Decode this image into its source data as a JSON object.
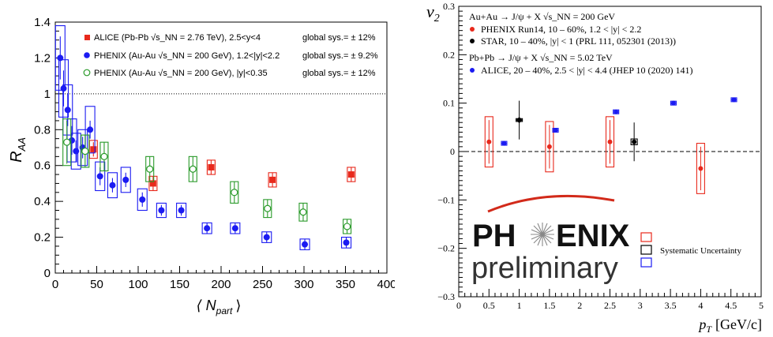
{
  "chart_data": [
    {
      "type": "scatter",
      "xlabel": "⟨ N",
      "xlabel_sub": "part",
      "xlabel_close": "⟩",
      "ylabel": "R",
      "ylabel_sub": "AA",
      "xlim": [
        0,
        400
      ],
      "ylim": [
        0,
        1.4
      ],
      "xticks": [
        "0",
        "50",
        "100",
        "150",
        "200",
        "250",
        "300",
        "350",
        "400"
      ],
      "yticks": [
        "0",
        "0.2",
        "0.4",
        "0.6",
        "0.8",
        "1",
        "1.2",
        "1.4"
      ],
      "reference_line": 1,
      "legend": [
        {
          "label": "ALICE (Pb-Pb √s_NN = 2.76 TeV), 2.5<y<4",
          "sys": "global sys.= ± 12%",
          "marker": "square",
          "color": "#e8291c"
        },
        {
          "label": "PHENIX (Au-Au √s_NN = 200 GeV), 1.2<|y|<2.2",
          "sys": "global sys.= ± 9.2%",
          "marker": "circle",
          "color": "#1b1bf2"
        },
        {
          "label": "PHENIX (Au-Au √s_NN = 200 GeV), |y|<0.35",
          "sys": "global sys.= ± 12%",
          "marker": "open-circle",
          "color": "#2a9a2a"
        }
      ],
      "series": [
        {
          "name": "ALICE (Pb-Pb √s_NN = 2.76 TeV), 2.5<y<4",
          "color": "#e8291c",
          "marker": "square",
          "points": [
            {
              "x": 46,
              "y": 0.69,
              "err": 0.04,
              "sys": 0.05
            },
            {
              "x": 118,
              "y": 0.5,
              "err": 0.04,
              "sys": 0.04
            },
            {
              "x": 188,
              "y": 0.59,
              "err": 0.04,
              "sys": 0.04
            },
            {
              "x": 262,
              "y": 0.52,
              "err": 0.04,
              "sys": 0.04
            },
            {
              "x": 357,
              "y": 0.55,
              "err": 0.04,
              "sys": 0.04
            }
          ]
        },
        {
          "name": "PHENIX (Au-Au √s_NN = 200 GeV), 1.2<|y|<2.2",
          "color": "#1b1bf2",
          "marker": "circle",
          "points": [
            {
              "x": 6,
              "y": 1.2,
              "err": 0.12,
              "sys": 0.18
            },
            {
              "x": 10,
              "y": 1.03,
              "err": 0.1,
              "sys": 0.16
            },
            {
              "x": 15,
              "y": 0.91,
              "err": 0.09,
              "sys": 0.14
            },
            {
              "x": 20,
              "y": 0.74,
              "err": 0.08,
              "sys": 0.12
            },
            {
              "x": 25,
              "y": 0.68,
              "err": 0.06,
              "sys": 0.1
            },
            {
              "x": 33,
              "y": 0.7,
              "err": 0.06,
              "sys": 0.1
            },
            {
              "x": 42,
              "y": 0.8,
              "err": 0.05,
              "sys": 0.13
            },
            {
              "x": 54,
              "y": 0.54,
              "err": 0.05,
              "sys": 0.08
            },
            {
              "x": 69,
              "y": 0.49,
              "err": 0.04,
              "sys": 0.07
            },
            {
              "x": 85,
              "y": 0.52,
              "err": 0.04,
              "sys": 0.07
            },
            {
              "x": 105,
              "y": 0.41,
              "err": 0.04,
              "sys": 0.06
            },
            {
              "x": 128,
              "y": 0.35,
              "err": 0.03,
              "sys": 0.04
            },
            {
              "x": 152,
              "y": 0.35,
              "err": 0.03,
              "sys": 0.04
            },
            {
              "x": 183,
              "y": 0.25,
              "err": 0.03,
              "sys": 0.03
            },
            {
              "x": 217,
              "y": 0.25,
              "err": 0.03,
              "sys": 0.03
            },
            {
              "x": 255,
              "y": 0.2,
              "err": 0.03,
              "sys": 0.03
            },
            {
              "x": 301,
              "y": 0.16,
              "err": 0.03,
              "sys": 0.03
            },
            {
              "x": 351,
              "y": 0.17,
              "err": 0.03,
              "sys": 0.03
            }
          ]
        },
        {
          "name": "PHENIX (Au-Au √s_NN = 200 GeV), |y|<0.35",
          "color": "#2a9a2a",
          "marker": "open-circle",
          "points": [
            {
              "x": 14,
              "y": 0.73,
              "err": 0.12,
              "sys": 0.13
            },
            {
              "x": 36,
              "y": 0.68,
              "err": 0.09,
              "sys": 0.09
            },
            {
              "x": 59,
              "y": 0.65,
              "err": 0.08,
              "sys": 0.08
            },
            {
              "x": 114,
              "y": 0.58,
              "err": 0.07,
              "sys": 0.07
            },
            {
              "x": 166,
              "y": 0.58,
              "err": 0.07,
              "sys": 0.07
            },
            {
              "x": 216,
              "y": 0.45,
              "err": 0.06,
              "sys": 0.06
            },
            {
              "x": 256,
              "y": 0.36,
              "err": 0.05,
              "sys": 0.05
            },
            {
              "x": 299,
              "y": 0.34,
              "err": 0.05,
              "sys": 0.05
            },
            {
              "x": 352,
              "y": 0.26,
              "err": 0.04,
              "sys": 0.04
            }
          ]
        }
      ]
    },
    {
      "type": "scatter",
      "xlabel": "p",
      "xlabel_sub": "T",
      "xlabel_units": "[GeV/c]",
      "ylabel": "v",
      "ylabel_sub": "2",
      "xlim": [
        0,
        5
      ],
      "ylim": [
        -0.3,
        0.3
      ],
      "xticks": [
        "0",
        "0.5",
        "1",
        "1.5",
        "2",
        "2.5",
        "3",
        "3.5",
        "4",
        "4.5",
        "5"
      ],
      "yticks": [
        "−0.3",
        "−0.2",
        "−0.1",
        "0",
        "0.1",
        "0.2",
        "0.3"
      ],
      "reference_line": 0,
      "legend_header_1": "Au+Au → J/ψ + X  √s_NN = 200 GeV",
      "legend_header_2": "Pb+Pb → J/ψ + X  √s_NN = 5.02 TeV",
      "legend": [
        {
          "label": "PHENIX Run14,  10 – 60%,  1.2 < |y| < 2.2",
          "color": "#e8291c"
        },
        {
          "label": "STAR,  10 – 40%,  |y| < 1  (PRL 111, 052301 (2013))",
          "color": "#000000"
        },
        {
          "label": "ALICE,  20 – 40%,  2.5 < |y| < 4.4  (JHEP 10 (2020) 141)",
          "color": "#1b1bf2"
        }
      ],
      "logo_text_1": "PH",
      "logo_text_2": "ENIX",
      "logo_text_3": "preliminary",
      "sys_legend_label": "Systematic Uncertainty",
      "series": [
        {
          "name": "PHENIX Run14,  10 – 60%,  1.2 < |y| < 2.2",
          "color": "#e8291c",
          "points": [
            {
              "x": 0.5,
              "y": 0.02,
              "err": 0.045,
              "sys": 0.052
            },
            {
              "x": 1.5,
              "y": 0.01,
              "err": 0.045,
              "sys": 0.052
            },
            {
              "x": 2.5,
              "y": 0.02,
              "err": 0.045,
              "sys": 0.052
            },
            {
              "x": 4.0,
              "y": -0.035,
              "err": 0.045,
              "sys": 0.052
            }
          ]
        },
        {
          "name": "STAR,  10 – 40%,  |y| < 1  (PRL 111, 052301 (2013))",
          "color": "#000000",
          "points": [
            {
              "x": 1.0,
              "y": 0.065,
              "err": 0.04,
              "sys": 0.003
            },
            {
              "x": 2.9,
              "y": 0.02,
              "err": 0.04,
              "sys": 0.006
            }
          ]
        },
        {
          "name": "ALICE,  20 – 40%,  2.5 < |y| < 4.4  (JHEP 10 (2020) 141)",
          "color": "#1b1bf2",
          "points": [
            {
              "x": 0.75,
              "y": 0.017,
              "err": 0.004,
              "sys": 0.004
            },
            {
              "x": 1.6,
              "y": 0.044,
              "err": 0.004,
              "sys": 0.004
            },
            {
              "x": 2.6,
              "y": 0.082,
              "err": 0.004,
              "sys": 0.004
            },
            {
              "x": 3.55,
              "y": 0.1,
              "err": 0.004,
              "sys": 0.004
            },
            {
              "x": 4.55,
              "y": 0.107,
              "err": 0.004,
              "sys": 0.004
            }
          ]
        }
      ]
    }
  ]
}
